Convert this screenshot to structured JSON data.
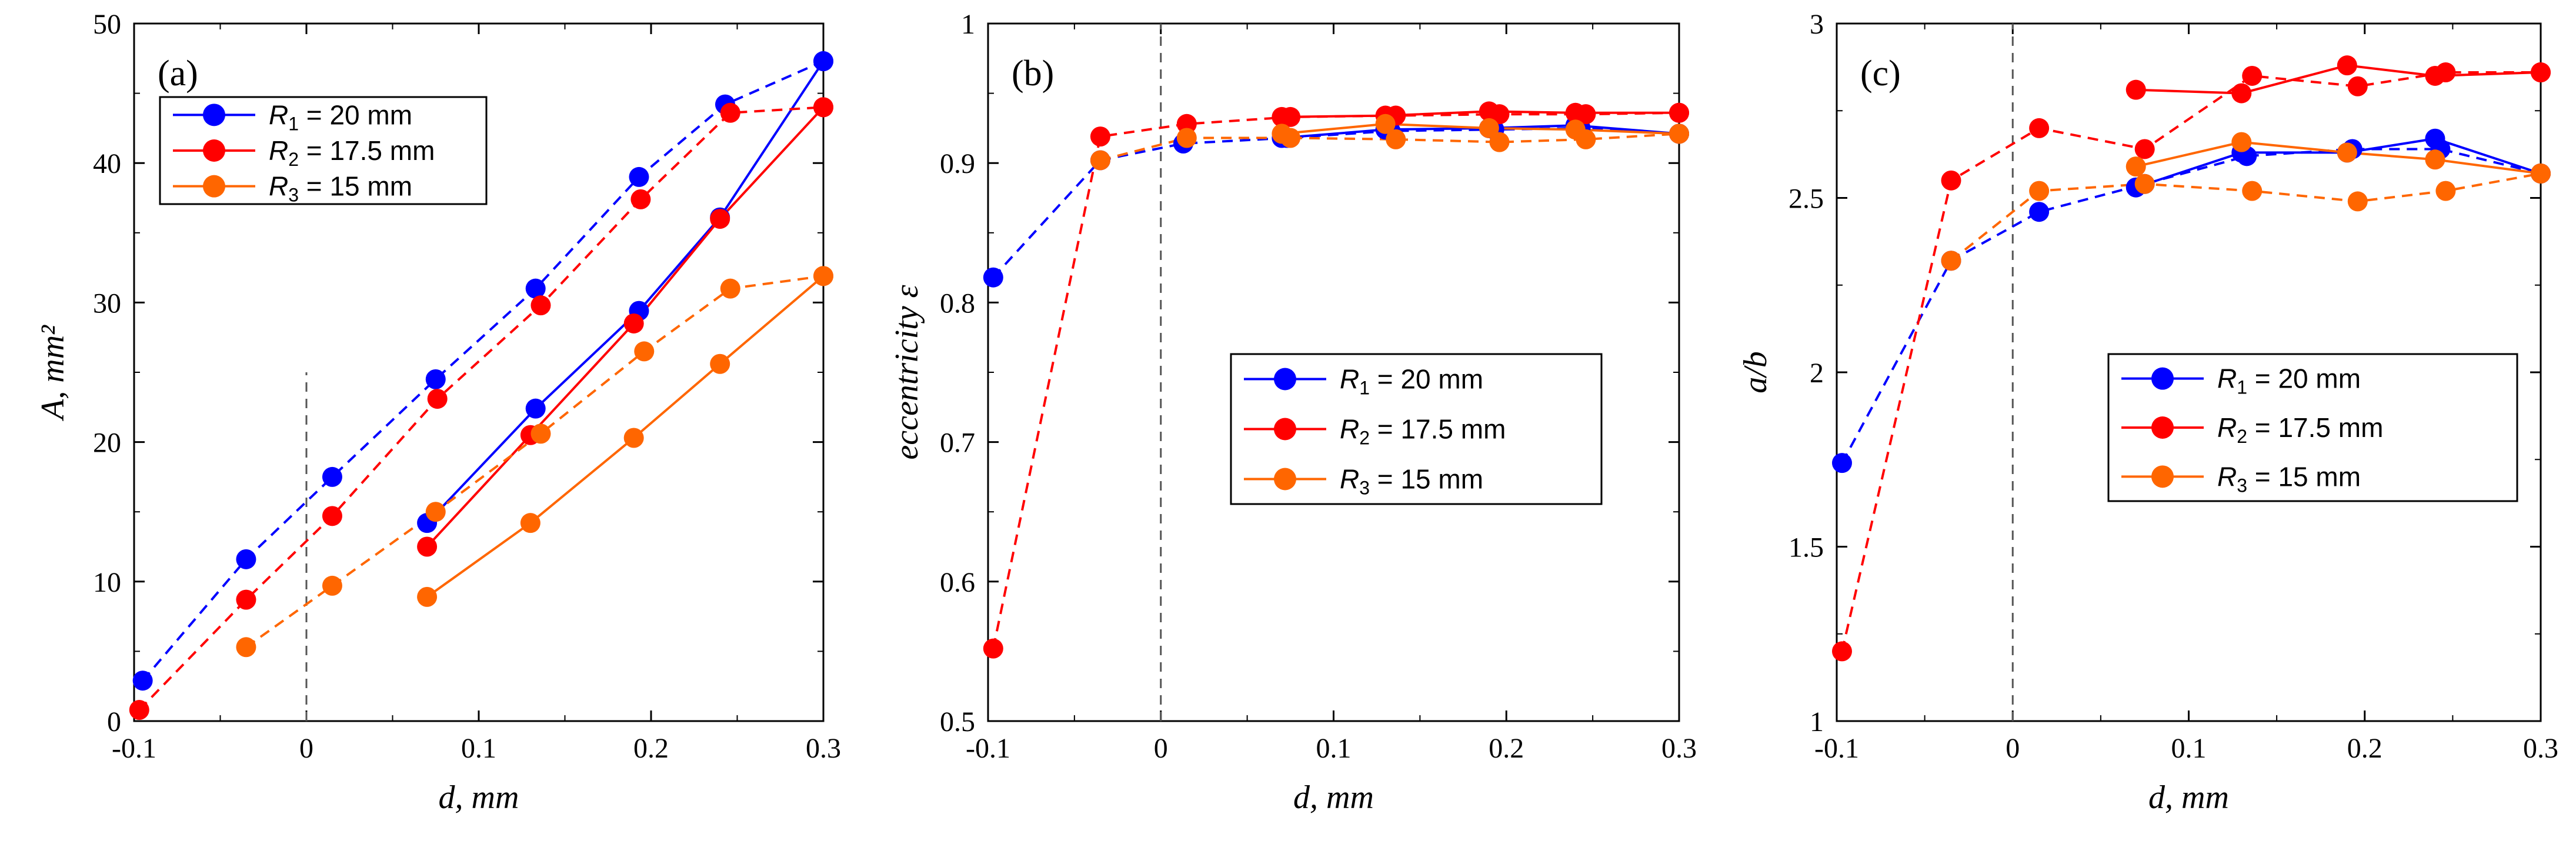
{
  "figure": {
    "colors": {
      "R1": "#0000ff",
      "R2": "#ff0000",
      "R3": "#ff6600"
    }
  },
  "chart_data": [
    {
      "type": "line",
      "panel_label": "(a)",
      "xlabel": "d, mm",
      "ylabel": "A, mm²",
      "xlim": [
        -0.1,
        0.3
      ],
      "ylim": [
        0,
        50
      ],
      "xticks": [
        -0.1,
        0,
        0.1,
        0.2,
        0.3
      ],
      "xticklabels": [
        "-0.1",
        "0",
        "0.1",
        "0.2",
        "0.3"
      ],
      "yticks": [
        0,
        10,
        20,
        30,
        40,
        50
      ],
      "yticklabels": [
        "0",
        "10",
        "20",
        "30",
        "40",
        "50"
      ],
      "vline": {
        "x": 0,
        "ymax": 25,
        "style": "dashed"
      },
      "legend": {
        "position": "top-left"
      },
      "grid": false,
      "series": [
        {
          "name": "R1 = 20 mm",
          "legend_sym": "R",
          "legend_sub": "1",
          "legend_rest": " = 20 mm",
          "color_key": "R1",
          "line": "dashed",
          "x": [
            -0.095,
            -0.035,
            0.015,
            0.075,
            0.133,
            0.193,
            0.243,
            0.3
          ],
          "y": [
            2.9,
            11.6,
            17.5,
            24.5,
            31.0,
            39.0,
            44.2,
            47.3
          ]
        },
        {
          "name": "",
          "color_key": "R1",
          "line": "solid",
          "x": [
            0.07,
            0.133,
            0.193,
            0.24,
            0.3
          ],
          "y": [
            14.2,
            22.4,
            29.4,
            36.1,
            47.3
          ]
        },
        {
          "name": "R2 = 17.5 mm",
          "legend_sym": "R",
          "legend_sub": "2",
          "legend_rest": " = 17.5 mm",
          "color_key": "R2",
          "line": "dashed",
          "x": [
            -0.097,
            -0.035,
            0.015,
            0.076,
            0.136,
            0.194,
            0.246,
            0.3
          ],
          "y": [
            0.8,
            8.7,
            14.7,
            23.1,
            29.8,
            37.4,
            43.6,
            44.0
          ]
        },
        {
          "name": "",
          "color_key": "R2",
          "line": "solid",
          "x": [
            0.07,
            0.13,
            0.19,
            0.24,
            0.3
          ],
          "y": [
            12.5,
            20.5,
            28.5,
            36.0,
            44.0
          ]
        },
        {
          "name": "R3 = 15 mm",
          "legend_sym": "R",
          "legend_sub": "3",
          "legend_rest": " = 15 mm",
          "color_key": "R3",
          "line": "dashed",
          "x": [
            -0.035,
            0.015,
            0.075,
            0.136,
            0.196,
            0.246,
            0.3
          ],
          "y": [
            5.3,
            9.7,
            15.0,
            20.6,
            26.5,
            31.0,
            31.9
          ]
        },
        {
          "name": "",
          "color_key": "R3",
          "line": "solid",
          "x": [
            0.07,
            0.13,
            0.19,
            0.24,
            0.3
          ],
          "y": [
            8.9,
            14.2,
            20.3,
            25.6,
            31.9
          ]
        }
      ]
    },
    {
      "type": "line",
      "panel_label": "(b)",
      "xlabel": "d, mm",
      "ylabel": "eccentricity ε",
      "xlim": [
        -0.1,
        0.3
      ],
      "ylim": [
        0.5,
        1
      ],
      "xticks": [
        -0.1,
        0,
        0.1,
        0.2,
        0.3
      ],
      "xticklabels": [
        "-0.1",
        "0",
        "0.1",
        "0.2",
        "0.3"
      ],
      "yticks": [
        0.5,
        0.6,
        0.7,
        0.8,
        0.9,
        1
      ],
      "yticklabels": [
        "0.5",
        "0.6",
        "0.7",
        "0.8",
        "0.9",
        "1"
      ],
      "vline": {
        "x": 0,
        "ymax": 1,
        "style": "dashed"
      },
      "legend": {
        "position": "center-right"
      },
      "grid": false,
      "series": [
        {
          "name": "R1 = 20 mm",
          "legend_sym": "R",
          "legend_sub": "1",
          "legend_rest": " = 20 mm",
          "color_key": "R1",
          "line": "dashed",
          "x": [
            -0.097,
            -0.035,
            0.013,
            0.073,
            0.133,
            0.193,
            0.243,
            0.3
          ],
          "y": [
            0.818,
            0.902,
            0.914,
            0.918,
            0.923,
            0.924,
            0.925,
            0.921
          ]
        },
        {
          "name": "",
          "color_key": "R1",
          "line": "solid",
          "x": [
            0.07,
            0.13,
            0.19,
            0.24,
            0.3
          ],
          "y": [
            0.918,
            0.924,
            0.925,
            0.927,
            0.921
          ]
        },
        {
          "name": "R2 = 17.5 mm",
          "legend_sym": "R",
          "legend_sub": "2",
          "legend_rest": " = 17.5 mm",
          "color_key": "R2",
          "line": "dashed",
          "x": [
            -0.097,
            -0.035,
            0.015,
            0.075,
            0.136,
            0.196,
            0.246,
            0.3
          ],
          "y": [
            0.552,
            0.919,
            0.928,
            0.933,
            0.934,
            0.935,
            0.935,
            0.936
          ]
        },
        {
          "name": "",
          "color_key": "R2",
          "line": "solid",
          "x": [
            0.07,
            0.13,
            0.19,
            0.24,
            0.3
          ],
          "y": [
            0.933,
            0.934,
            0.937,
            0.936,
            0.936
          ]
        },
        {
          "name": "R3 = 15 mm",
          "legend_sym": "R",
          "legend_sub": "3",
          "legend_rest": " = 15 mm",
          "color_key": "R3",
          "line": "dashed",
          "x": [
            -0.035,
            0.015,
            0.075,
            0.136,
            0.196,
            0.246,
            0.3
          ],
          "y": [
            0.902,
            0.918,
            0.918,
            0.917,
            0.915,
            0.917,
            0.921
          ]
        },
        {
          "name": "",
          "color_key": "R3",
          "line": "solid",
          "x": [
            0.07,
            0.13,
            0.19,
            0.24,
            0.3
          ],
          "y": [
            0.921,
            0.928,
            0.925,
            0.924,
            0.921
          ]
        }
      ]
    },
    {
      "type": "line",
      "panel_label": "(c)",
      "xlabel": "d, mm",
      "ylabel": "a/b",
      "xlim": [
        -0.1,
        0.3
      ],
      "ylim": [
        1,
        3
      ],
      "xticks": [
        -0.1,
        0,
        0.1,
        0.2,
        0.3
      ],
      "xticklabels": [
        "-0.1",
        "0",
        "0.1",
        "0.2",
        "0.3"
      ],
      "yticks": [
        1,
        1.5,
        2,
        2.5,
        3
      ],
      "yticklabels": [
        "1",
        "1.5",
        "2",
        "2.5",
        "3"
      ],
      "vline": {
        "x": 0,
        "ymax": 3,
        "style": "dashed"
      },
      "legend": {
        "position": "center-right"
      },
      "grid": false,
      "series": [
        {
          "name": "R1 = 20 mm",
          "legend_sym": "R",
          "legend_sub": "1",
          "legend_rest": " = 20 mm",
          "color_key": "R1",
          "line": "dashed",
          "x": [
            -0.097,
            -0.035,
            0.015,
            0.075,
            0.133,
            0.193,
            0.243,
            0.3
          ],
          "y": [
            1.74,
            2.32,
            2.46,
            2.54,
            2.62,
            2.64,
            2.64,
            2.57
          ]
        },
        {
          "name": "",
          "color_key": "R1",
          "line": "solid",
          "x": [
            0.07,
            0.13,
            0.19,
            0.24,
            0.3
          ],
          "y": [
            2.53,
            2.63,
            2.63,
            2.67,
            2.57
          ]
        },
        {
          "name": "R2 = 17.5 mm",
          "legend_sym": "R",
          "legend_sub": "2",
          "legend_rest": " = 17.5 mm",
          "color_key": "R2",
          "line": "dashed",
          "x": [
            -0.097,
            -0.035,
            0.015,
            0.075,
            0.136,
            0.196,
            0.246,
            0.3
          ],
          "y": [
            1.2,
            2.55,
            2.7,
            2.64,
            2.85,
            2.82,
            2.86,
            2.86
          ]
        },
        {
          "name": "",
          "color_key": "R2",
          "line": "solid",
          "x": [
            0.07,
            0.13,
            0.19,
            0.24,
            0.3
          ],
          "y": [
            2.81,
            2.8,
            2.88,
            2.85,
            2.86
          ]
        },
        {
          "name": "R3 = 15 mm",
          "legend_sym": "R",
          "legend_sub": "3",
          "legend_rest": " = 15 mm",
          "color_key": "R3",
          "line": "dashed",
          "x": [
            -0.035,
            0.015,
            0.075,
            0.136,
            0.196,
            0.246,
            0.3
          ],
          "y": [
            2.32,
            2.52,
            2.54,
            2.52,
            2.49,
            2.52,
            2.57
          ]
        },
        {
          "name": "",
          "color_key": "R3",
          "line": "solid",
          "x": [
            0.07,
            0.13,
            0.19,
            0.24,
            0.3
          ],
          "y": [
            2.59,
            2.66,
            2.63,
            2.61,
            2.57
          ]
        }
      ]
    }
  ]
}
